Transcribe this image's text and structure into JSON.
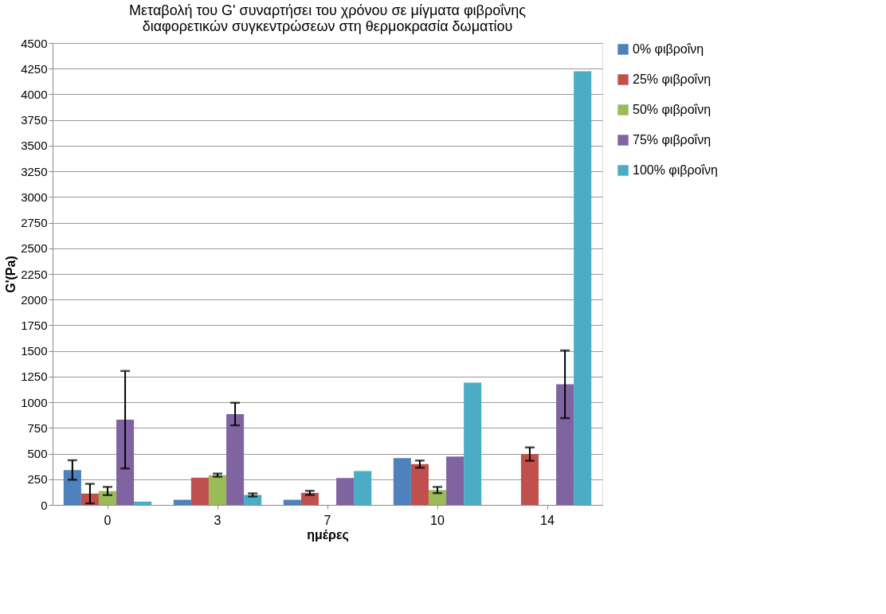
{
  "chart_data": {
    "type": "bar",
    "title": [
      "Μεταβολή του G' συναρτήσει του χρόνου σε μίγματα φιβροΐνης",
      "διαφορετικών συγκεντρώσεων στη θερμοκρασία δωματίου"
    ],
    "xlabel": "ημέρες",
    "ylabel": "G'(Pa)",
    "categories": [
      "0",
      "3",
      "7",
      "10",
      "14"
    ],
    "series": [
      {
        "name": "0% φιβροΐνη",
        "color": "#4f81bd",
        "values": [
          340,
          50,
          50,
          455,
          null
        ],
        "errors": [
          95,
          null,
          null,
          null,
          null
        ]
      },
      {
        "name": "25% φιβροΐνη",
        "color": "#c0504d",
        "values": [
          110,
          265,
          117,
          397,
          495
        ],
        "errors": [
          95,
          null,
          20,
          35,
          65
        ]
      },
      {
        "name": "50% φιβροΐνη",
        "color": "#9bbb59",
        "values": [
          135,
          290,
          null,
          145,
          null
        ],
        "errors": [
          40,
          15,
          null,
          30,
          null
        ]
      },
      {
        "name": "75% φιβροΐνη",
        "color": "#8064a2",
        "values": [
          830,
          885,
          262,
          472,
          1175
        ],
        "errors": [
          475,
          110,
          null,
          null,
          330
        ]
      },
      {
        "name": "100% φιβροΐνη",
        "color": "#4bacc6",
        "values": [
          32,
          97,
          330,
          1190,
          4225
        ],
        "errors": [
          null,
          15,
          null,
          null,
          null
        ]
      }
    ],
    "ylim": [
      0,
      4500
    ],
    "yticks": [
      0,
      250,
      500,
      750,
      1000,
      1250,
      1500,
      1750,
      2000,
      2250,
      2500,
      2750,
      3000,
      3250,
      3500,
      3750,
      4000,
      4250,
      4500
    ],
    "grid": "y",
    "legend": "right"
  }
}
